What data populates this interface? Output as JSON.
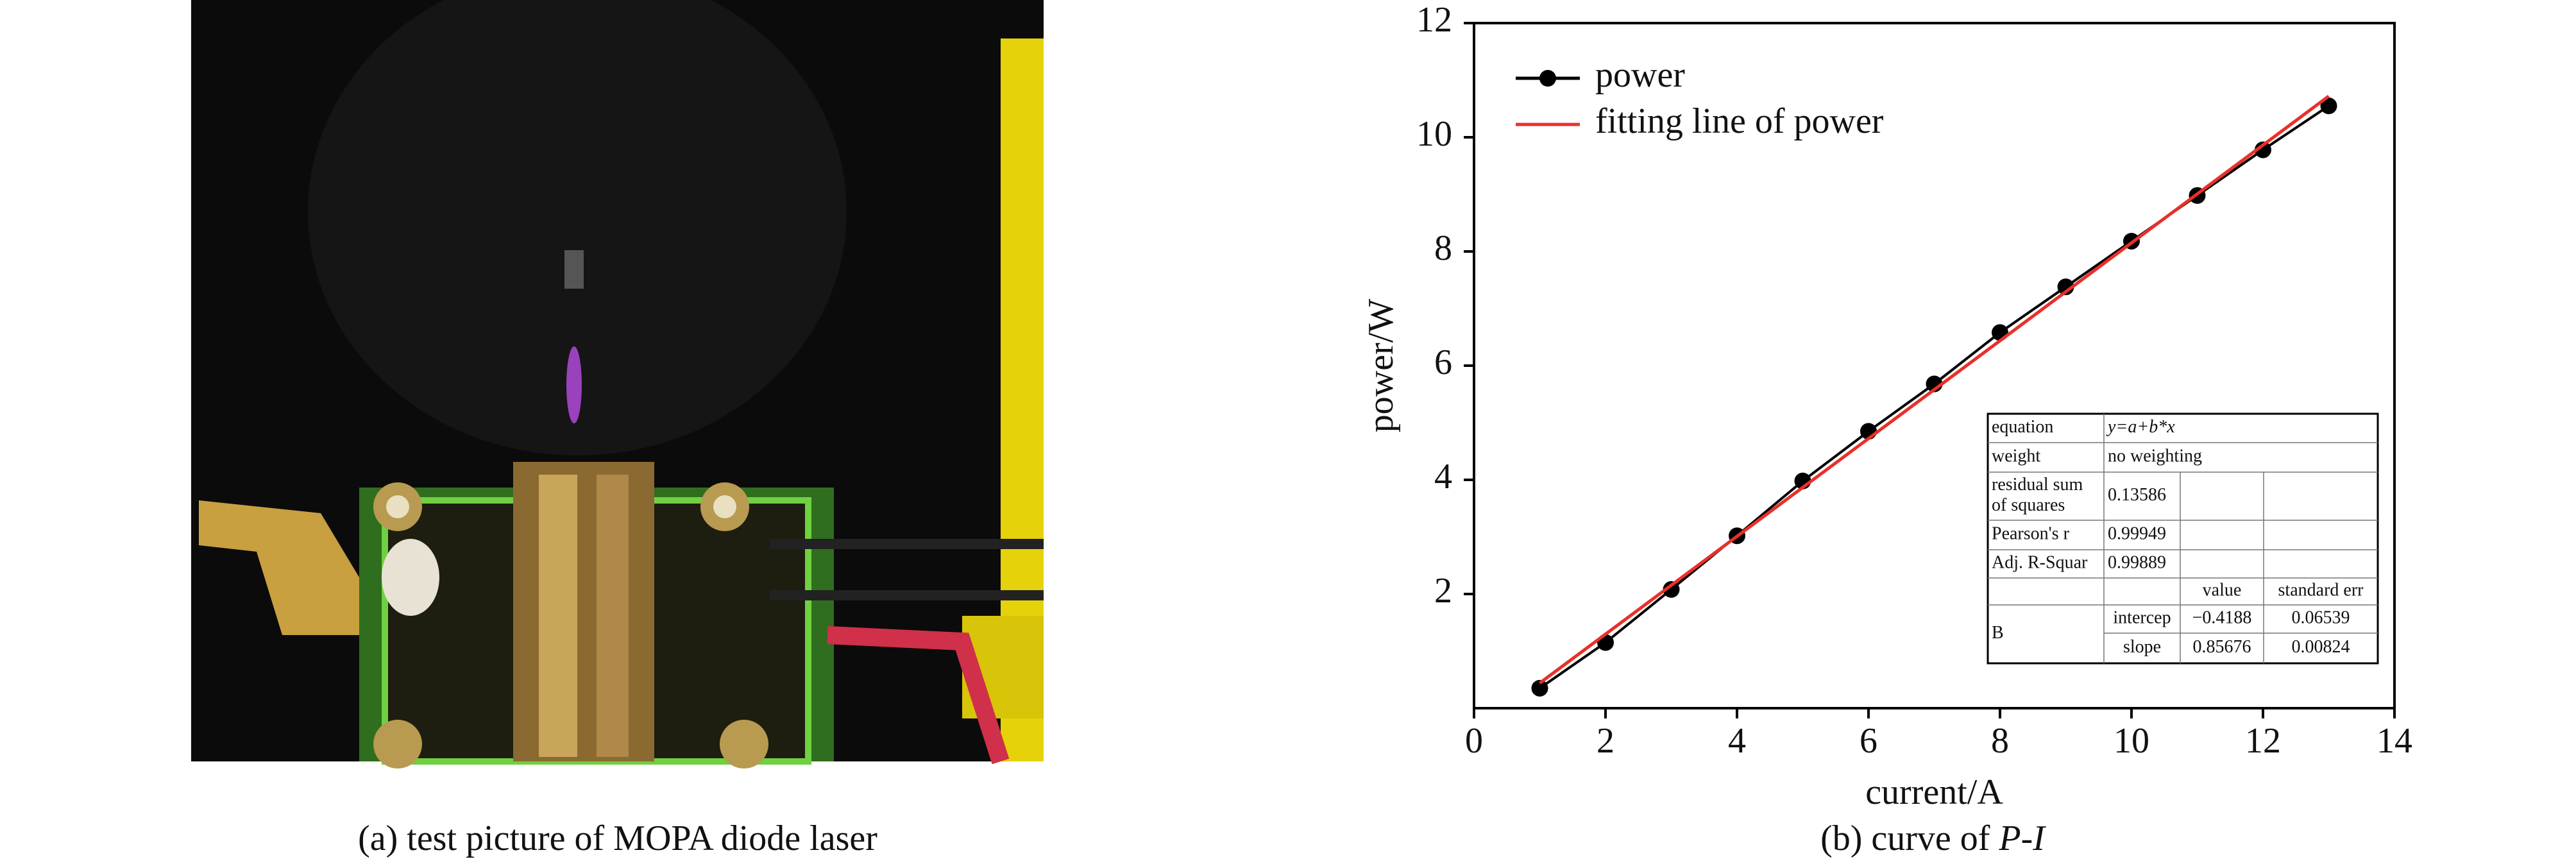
{
  "figure": {
    "left_caption": "(a) test picture of MOPA diode laser"
  },
  "chart_data": {
    "type": "line",
    "x": [
      1,
      2,
      3,
      4,
      5,
      6,
      7,
      8,
      9,
      10,
      11,
      12,
      13
    ],
    "series": [
      {
        "name": "power",
        "color": "#000000",
        "marker": "circle",
        "values": [
          0.35,
          1.15,
          2.08,
          3.02,
          3.98,
          4.85,
          5.68,
          6.58,
          7.38,
          8.18,
          8.98,
          9.78,
          10.55
        ]
      },
      {
        "name": "fitting line of power",
        "color": "#e8302a",
        "x": [
          1,
          13
        ],
        "values": [
          0.44,
          10.72
        ]
      }
    ],
    "xlabel": "current/A",
    "ylabel": "power/W",
    "xlim": [
      0,
      14
    ],
    "xticks": [
      0,
      2,
      4,
      6,
      8,
      10,
      12,
      14
    ],
    "ylim": [
      0,
      12
    ],
    "yticks": [
      2,
      4,
      6,
      8,
      10,
      12
    ],
    "legend": "upper left",
    "caption": {
      "prefix": "(b) curve of",
      "italic": "P-I"
    },
    "fit_table": {
      "rows": [
        [
          "equation",
          "y=a+b*x"
        ],
        [
          "weight",
          "no weighting"
        ],
        [
          [
            "residual sum",
            "of squares"
          ],
          "0.13586"
        ],
        [
          "Pearson's r",
          "0.99949"
        ],
        [
          "Adj. R-Squar",
          "0.99889"
        ]
      ],
      "header": [
        "value",
        "standard err"
      ],
      "param": "B",
      "params": [
        [
          "intercep",
          "−0.4188",
          "0.06539"
        ],
        [
          "slope",
          "0.85676",
          "0.00824"
        ]
      ]
    }
  }
}
